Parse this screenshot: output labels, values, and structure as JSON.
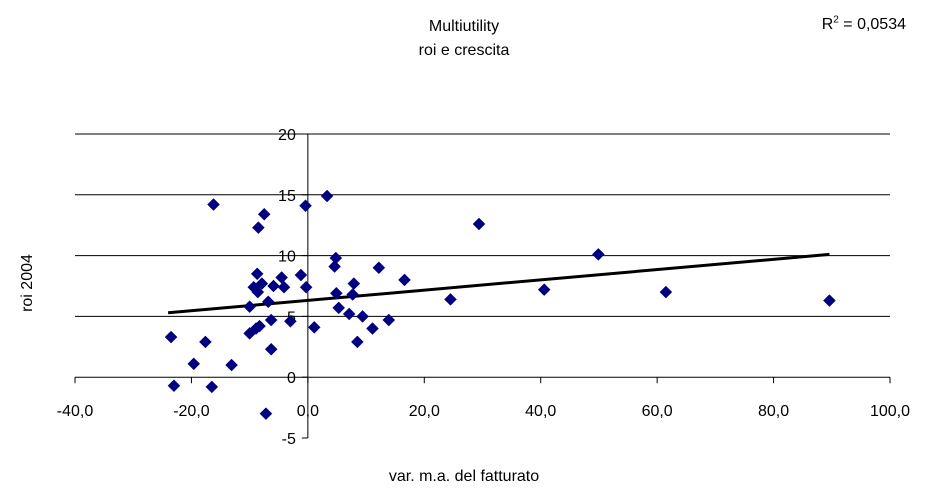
{
  "chart_data": {
    "type": "scatter",
    "title": "Multiutility",
    "subtitle": "roi e crescita",
    "xlabel": "var. m.a. del fatturato",
    "ylabel": "roi 2004",
    "r_squared_label": "R",
    "r_squared_sup": "2",
    "r_squared_value": " = 0,0534",
    "xlim": [
      -40,
      100
    ],
    "ylim": [
      -5,
      20
    ],
    "x_ticks": [
      -40,
      -20,
      0,
      20,
      40,
      60,
      80,
      100
    ],
    "x_tick_labels": [
      "-40,0",
      "-20,0",
      "0,0",
      "20,0",
      "40,0",
      "60,0",
      "80,0",
      "100,0"
    ],
    "y_ticks": [
      -5,
      0,
      5,
      10,
      15,
      20
    ],
    "y_tick_labels": [
      "-5",
      "0",
      "5",
      "10",
      "15",
      "20"
    ],
    "grid": "horizontal",
    "marker": "diamond",
    "point_color": "#000080",
    "trendline": {
      "type": "linear",
      "color": "#000000",
      "x": [
        -24,
        89.6
      ],
      "y": [
        5.3,
        10.1
      ]
    },
    "points": [
      {
        "x": -23.5,
        "y": 3.3
      },
      {
        "x": -23.0,
        "y": -0.7
      },
      {
        "x": -19.6,
        "y": 1.1
      },
      {
        "x": -17.6,
        "y": 2.9
      },
      {
        "x": -16.5,
        "y": -0.8
      },
      {
        "x": -16.2,
        "y": 14.2
      },
      {
        "x": -13.1,
        "y": 1.0
      },
      {
        "x": -10.0,
        "y": 5.8
      },
      {
        "x": -10.0,
        "y": 3.6
      },
      {
        "x": -9.3,
        "y": 7.4
      },
      {
        "x": -8.9,
        "y": 4.0
      },
      {
        "x": -8.7,
        "y": 8.5
      },
      {
        "x": -8.6,
        "y": 7.0
      },
      {
        "x": -8.5,
        "y": 12.3
      },
      {
        "x": -8.3,
        "y": 4.2
      },
      {
        "x": -7.9,
        "y": 7.7
      },
      {
        "x": -7.5,
        "y": 13.4
      },
      {
        "x": -7.2,
        "y": -3.0
      },
      {
        "x": -6.8,
        "y": 6.2
      },
      {
        "x": -6.3,
        "y": 2.3
      },
      {
        "x": -6.3,
        "y": 4.7
      },
      {
        "x": -5.9,
        "y": 7.5
      },
      {
        "x": -4.5,
        "y": 8.2
      },
      {
        "x": -4.1,
        "y": 7.4
      },
      {
        "x": -3.0,
        "y": 4.6
      },
      {
        "x": -1.2,
        "y": 8.4
      },
      {
        "x": -0.4,
        "y": 14.1
      },
      {
        "x": -0.3,
        "y": 7.4
      },
      {
        "x": 1.1,
        "y": 4.1
      },
      {
        "x": 3.3,
        "y": 14.9
      },
      {
        "x": 4.6,
        "y": 9.1
      },
      {
        "x": 4.8,
        "y": 9.8
      },
      {
        "x": 4.9,
        "y": 6.9
      },
      {
        "x": 5.3,
        "y": 5.7
      },
      {
        "x": 7.1,
        "y": 5.2
      },
      {
        "x": 7.7,
        "y": 6.8
      },
      {
        "x": 7.9,
        "y": 7.7
      },
      {
        "x": 8.5,
        "y": 2.9
      },
      {
        "x": 9.4,
        "y": 5.0
      },
      {
        "x": 11.1,
        "y": 4.0
      },
      {
        "x": 12.2,
        "y": 9.0
      },
      {
        "x": 13.9,
        "y": 4.7
      },
      {
        "x": 16.6,
        "y": 8.0
      },
      {
        "x": 24.5,
        "y": 6.4
      },
      {
        "x": 29.4,
        "y": 12.6
      },
      {
        "x": 40.6,
        "y": 7.2
      },
      {
        "x": 49.9,
        "y": 10.1
      },
      {
        "x": 61.5,
        "y": 7.0
      },
      {
        "x": 89.6,
        "y": 6.3
      }
    ]
  }
}
